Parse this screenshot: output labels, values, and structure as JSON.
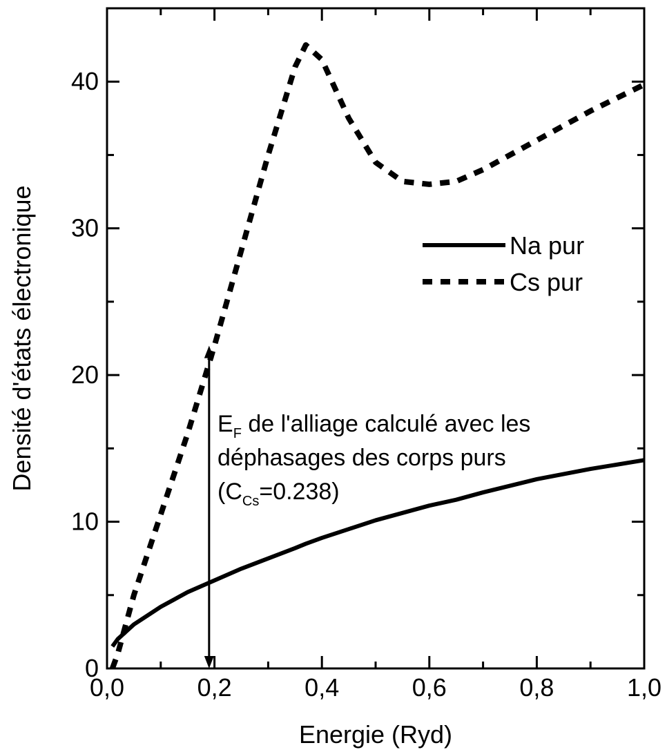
{
  "chart_data": {
    "type": "line",
    "xlabel": "Energie (Ryd)",
    "ylabel": "Densité d'états électronique",
    "x": [
      0.01,
      0.02,
      0.05,
      0.1,
      0.15,
      0.2,
      0.25,
      0.3,
      0.35,
      0.37,
      0.4,
      0.45,
      0.5,
      0.55,
      0.6,
      0.65,
      0.7,
      0.8,
      0.9,
      1.0
    ],
    "series": [
      {
        "name": "Na pur",
        "color": "#000000",
        "style": "solid",
        "values": [
          1.5,
          2,
          3,
          4.2,
          5.2,
          6,
          6.8,
          7.5,
          8.2,
          8.5,
          8.9,
          9.5,
          10.1,
          10.6,
          11.1,
          11.5,
          12,
          12.9,
          13.6,
          14.2
        ]
      },
      {
        "name": "Cs pur",
        "color": "#000000",
        "style": "dashed",
        "values": [
          0,
          1,
          5,
          10.5,
          16,
          22,
          28.5,
          35,
          41,
          42.5,
          41.5,
          37.5,
          34.5,
          33.2,
          33,
          33.2,
          34,
          36,
          38,
          39.8
        ]
      }
    ],
    "xlim": [
      0,
      1.0
    ],
    "ylim": [
      0,
      45
    ],
    "xticks": [
      {
        "value": 0,
        "label": "0,0"
      },
      {
        "value": 0.2,
        "label": "0,2"
      },
      {
        "value": 0.4,
        "label": "0,4"
      },
      {
        "value": 0.6,
        "label": "0,6"
      },
      {
        "value": 0.8,
        "label": "0,8"
      },
      {
        "value": 1.0,
        "label": "1,0"
      }
    ],
    "xminor": [
      0.1,
      0.3,
      0.5,
      0.7,
      0.9
    ],
    "yticks": [
      0,
      10,
      20,
      30,
      40
    ],
    "yminor": [
      5,
      15,
      25,
      35
    ],
    "arrow": {
      "x": 0.19,
      "y": [
        0,
        22
      ]
    },
    "annotation": {
      "lines": [
        [
          "E",
          "F",
          " de l'alliage calculé avec les"
        ],
        [
          "déphasages des corps purs"
        ],
        [
          "(C",
          "Cs",
          "=0.238)"
        ]
      ]
    }
  }
}
